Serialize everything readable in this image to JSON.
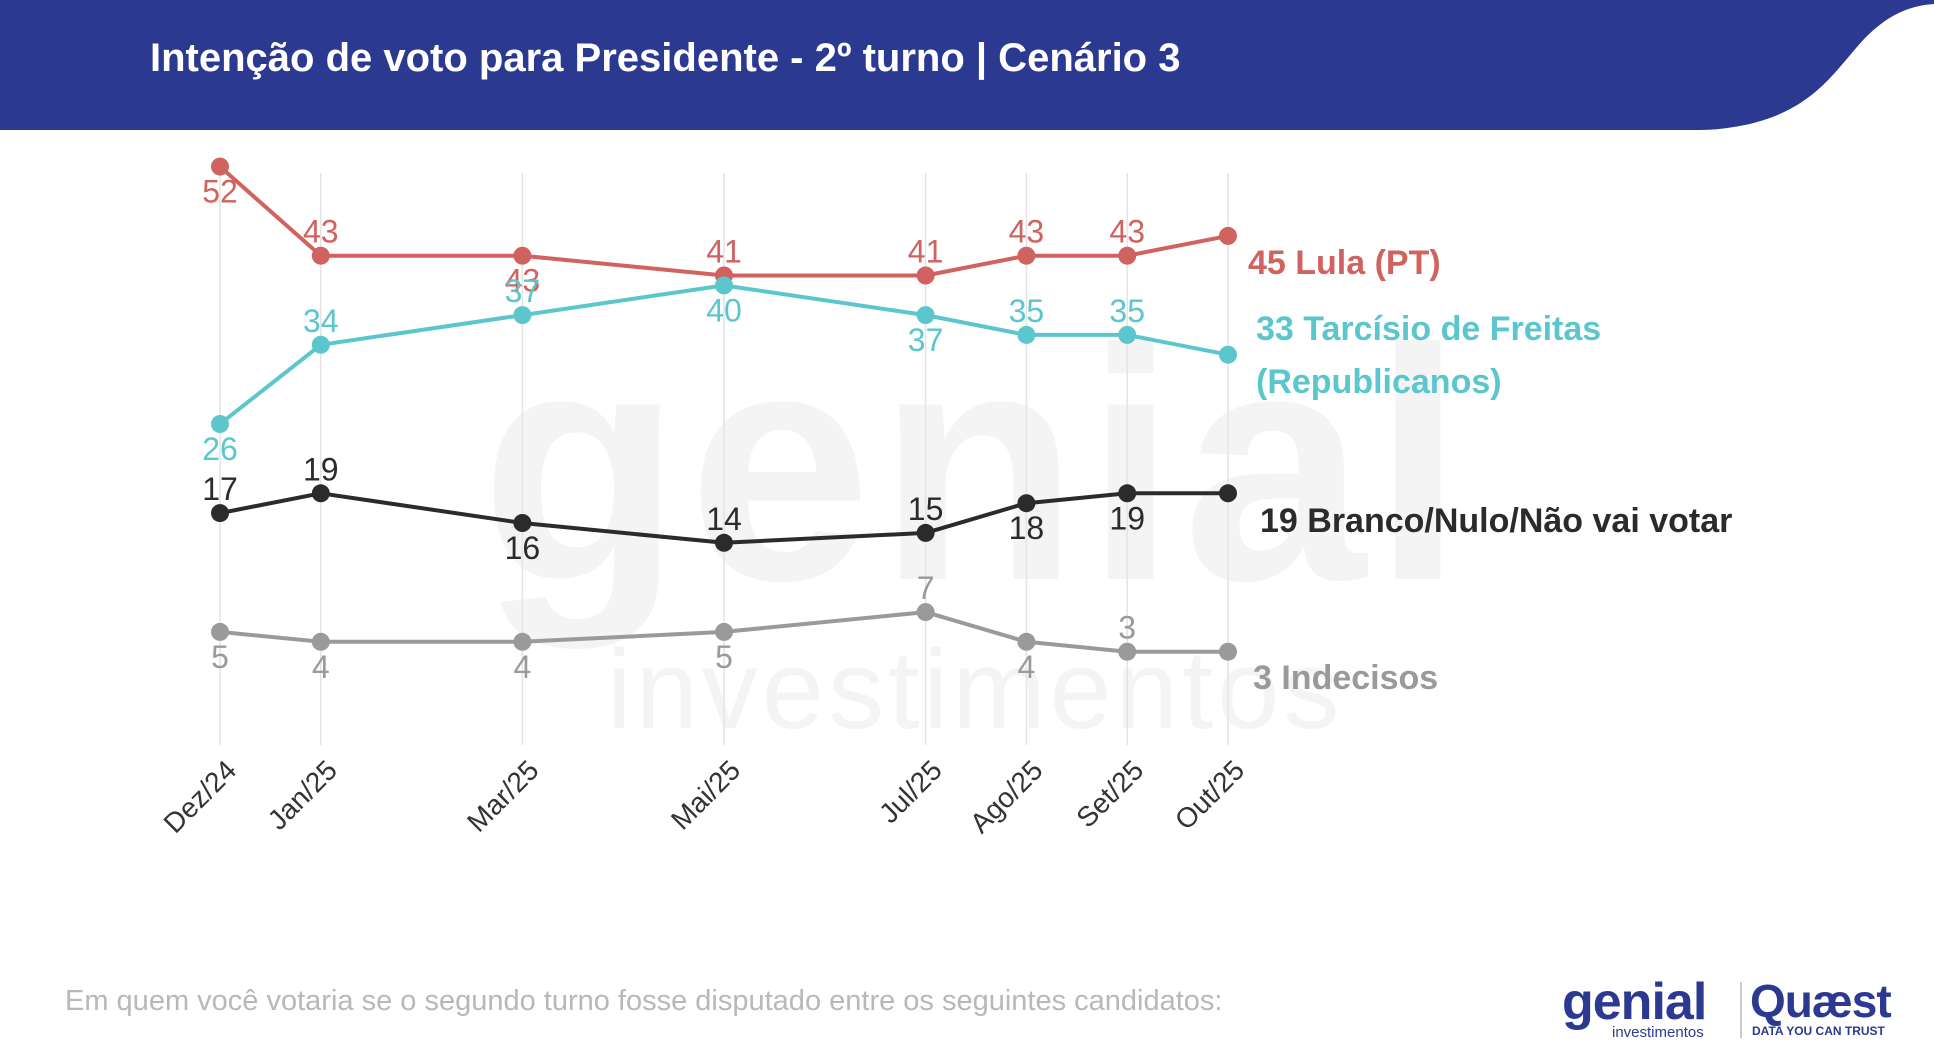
{
  "header": {
    "title": "Intenção de voto para Presidente - 2º turno | Cenário 3",
    "band_color": "#2b3990"
  },
  "watermark": {
    "main": "genial",
    "sub": "investimentos"
  },
  "footnote": "Em quem você votaria se o segundo turno fosse disputado entre os seguintes candidatos:",
  "logos": {
    "genial": {
      "name": "genial",
      "tagline": "investimentos"
    },
    "quaest": {
      "name": "Quæst",
      "tagline": "DATA YOU CAN TRUST"
    }
  },
  "chart_data": {
    "type": "line",
    "title": "Intenção de voto para Presidente - 2º turno | Cenário 3",
    "categories": [
      "Dez/24",
      "Jan/25",
      "Mar/25",
      "Mai/25",
      "Jul/25",
      "Ago/25",
      "Set/25",
      "Out/25"
    ],
    "x_positions_months": [
      0,
      1,
      3,
      5,
      7,
      8,
      9,
      10
    ],
    "ylim": [
      0,
      55
    ],
    "grid": "vertical",
    "legend": "end-of-line labels (right)",
    "series": [
      {
        "name": "Lula (PT)",
        "end_label": "45 Lula (PT)",
        "color": "#d0625f",
        "values": [
          52,
          43,
          43,
          41,
          41,
          43,
          43,
          45
        ],
        "point_labels": [
          "52",
          "43",
          "43",
          "41",
          "41",
          "43",
          "43",
          ""
        ],
        "label_pos": [
          "below",
          "above",
          "below",
          "above",
          "above",
          "above",
          "above",
          "none"
        ]
      },
      {
        "name": "Tarcísio de Freitas (Republicanos)",
        "end_label_lines": [
          "33 Tarcísio de Freitas",
          "(Republicanos)"
        ],
        "color": "#5bc6cc",
        "values": [
          26,
          34,
          37,
          40,
          37,
          35,
          35,
          33
        ],
        "point_labels": [
          "26",
          "34",
          "37",
          "40",
          "37",
          "35",
          "35",
          ""
        ],
        "label_pos": [
          "below",
          "above",
          "above",
          "below",
          "below",
          "above",
          "above",
          "none"
        ]
      },
      {
        "name": "Branco/Nulo/Não vai votar",
        "end_label": "19 Branco/Nulo/Não vai votar",
        "color": "#2b2b2b",
        "values": [
          17,
          19,
          16,
          14,
          15,
          18,
          19,
          19
        ],
        "point_labels": [
          "17",
          "19",
          "16",
          "14",
          "15",
          "18",
          "19",
          ""
        ],
        "label_pos": [
          "above",
          "above",
          "below",
          "above",
          "above",
          "below",
          "below",
          "none"
        ]
      },
      {
        "name": "Indecisos",
        "end_label": "3 Indecisos",
        "color": "#9a9a9a",
        "values": [
          5,
          4,
          4,
          5,
          7,
          4,
          3,
          3
        ],
        "point_labels": [
          "5",
          "4",
          "4",
          "5",
          "7",
          "4",
          "3",
          ""
        ],
        "label_pos": [
          "below",
          "below",
          "below",
          "below",
          "above",
          "below",
          "above",
          "none"
        ]
      }
    ]
  }
}
